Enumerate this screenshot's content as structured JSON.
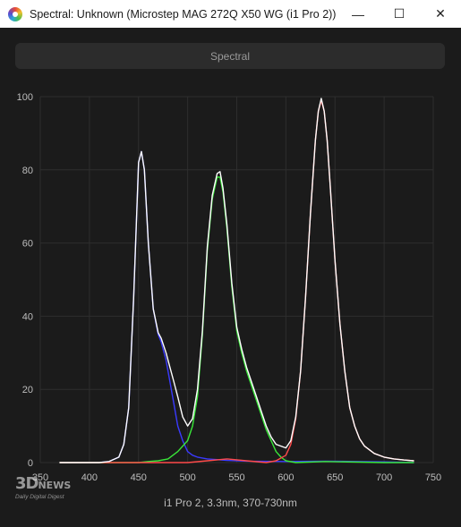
{
  "window": {
    "title": "Spectral: Unknown (Microstep MAG 272Q X50 WG (i1 Pro 2))",
    "controls": {
      "minimize": "—",
      "maximize": "☐",
      "close": "✕"
    }
  },
  "tab": {
    "label": "Spectral"
  },
  "footer": {
    "caption": "i1 Pro 2, 3.3nm, 370-730nm"
  },
  "watermark": {
    "main": "3D",
    "news": "NEWS",
    "sub": "Daily Digital Digest"
  },
  "colors": {
    "background": "#1b1b1b",
    "grid": "#2e2e2e",
    "axis_text": "#bdbdbd",
    "total": "#ffffff",
    "red": "#ff4a4a",
    "green": "#39e639",
    "blue": "#3a3aff"
  },
  "chart_data": {
    "type": "line",
    "xlim": [
      350,
      750
    ],
    "ylim": [
      0,
      100
    ],
    "x_ticks": [
      350,
      400,
      450,
      500,
      550,
      600,
      650,
      700,
      750
    ],
    "y_ticks": [
      0,
      20,
      40,
      60,
      80,
      100
    ],
    "grid": true,
    "series": [
      {
        "color": "blue",
        "x": [
          370,
          410,
          420,
          430,
          435,
          440,
          445,
          450,
          453,
          456,
          460,
          465,
          470,
          473,
          478,
          482,
          486,
          490,
          495,
          500,
          505,
          510,
          520,
          540,
          560,
          600,
          640,
          700,
          730
        ],
        "y": [
          0,
          0,
          0.3,
          1.5,
          5,
          15,
          45,
          82,
          85,
          80,
          60,
          42,
          35,
          33,
          28,
          22,
          16,
          10,
          6,
          3,
          2,
          1.5,
          1,
          0.6,
          0.4,
          0.3,
          0.4,
          0.2,
          0
        ]
      },
      {
        "color": "green",
        "x": [
          370,
          450,
          460,
          470,
          480,
          490,
          500,
          505,
          510,
          515,
          520,
          525,
          530,
          533,
          536,
          540,
          545,
          550,
          555,
          560,
          565,
          570,
          575,
          580,
          585,
          590,
          595,
          600,
          610,
          640,
          700,
          730
        ],
        "y": [
          0,
          0,
          0.3,
          0.5,
          1,
          3,
          6,
          10,
          18,
          35,
          58,
          72,
          78,
          78,
          74,
          64,
          48,
          36,
          30,
          25,
          21,
          17,
          13,
          9,
          6,
          3,
          1.5,
          0.5,
          0,
          0.3,
          0,
          0
        ]
      },
      {
        "color": "red",
        "x": [
          370,
          500,
          520,
          540,
          560,
          580,
          590,
          600,
          605,
          610,
          615,
          620,
          625,
          630,
          633,
          636,
          639,
          642,
          645,
          650,
          655,
          660,
          665,
          670,
          675,
          680,
          690,
          700,
          710,
          720,
          730
        ],
        "y": [
          0,
          0,
          0.5,
          1,
          0.5,
          0,
          0.5,
          2,
          5,
          12,
          25,
          45,
          68,
          88,
          96,
          99,
          96,
          88,
          76,
          55,
          38,
          25,
          15,
          10,
          6.5,
          4.5,
          2.5,
          1.5,
          1,
          0.7,
          0.5
        ]
      },
      {
        "color": "total",
        "x": [
          370,
          410,
          420,
          430,
          435,
          440,
          445,
          450,
          453,
          456,
          460,
          465,
          470,
          473,
          478,
          482,
          486,
          490,
          495,
          500,
          505,
          510,
          515,
          520,
          525,
          530,
          533,
          536,
          540,
          545,
          550,
          555,
          560,
          565,
          570,
          575,
          580,
          585,
          590,
          600,
          605,
          610,
          615,
          620,
          625,
          630,
          633,
          636,
          639,
          642,
          645,
          650,
          655,
          660,
          665,
          670,
          675,
          680,
          690,
          700,
          710,
          720,
          730
        ],
        "y": [
          0,
          0,
          0.3,
          1.5,
          5,
          15,
          45,
          82,
          85,
          80,
          60,
          42,
          35.5,
          34,
          30,
          26,
          22,
          18,
          12.5,
          10,
          12,
          20,
          36,
          59,
          73,
          79,
          79.5,
          75,
          65,
          49,
          37,
          31,
          26,
          22,
          18,
          14,
          10,
          7,
          5,
          4,
          6,
          12.5,
          25,
          45,
          68,
          88,
          96,
          99.5,
          96,
          88,
          76,
          55,
          38,
          25,
          15,
          10,
          6.5,
          4.5,
          2.5,
          1.5,
          1,
          0.7,
          0.5
        ]
      }
    ]
  }
}
